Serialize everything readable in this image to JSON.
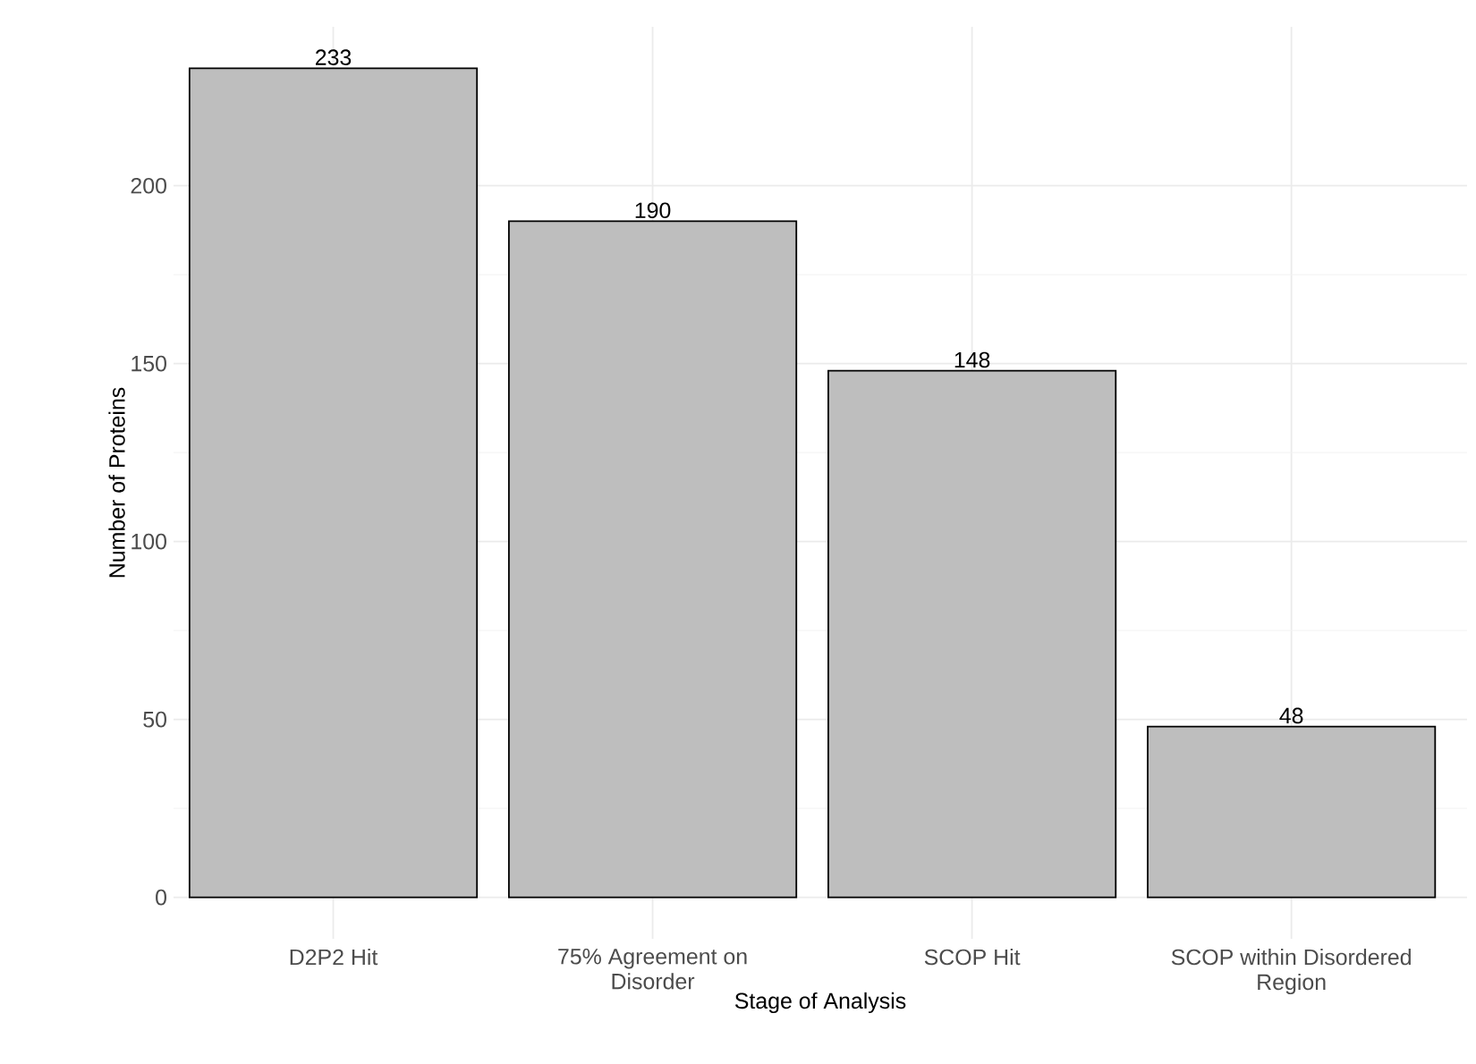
{
  "chart_data": {
    "type": "bar",
    "xlabel": "Stage of Analysis",
    "ylabel": "Number of Proteins",
    "categories": [
      "D2P2 Hit",
      "75% Agreement on Disorder",
      "SCOP Hit",
      "SCOP within Disordered Region"
    ],
    "values": [
      233,
      190,
      148,
      48
    ],
    "color": "#bebebe",
    "ylim": [
      -11.65,
      244.65
    ],
    "yticks": [
      0,
      50,
      100,
      150,
      200
    ],
    "grid": true,
    "data_labels": true
  }
}
